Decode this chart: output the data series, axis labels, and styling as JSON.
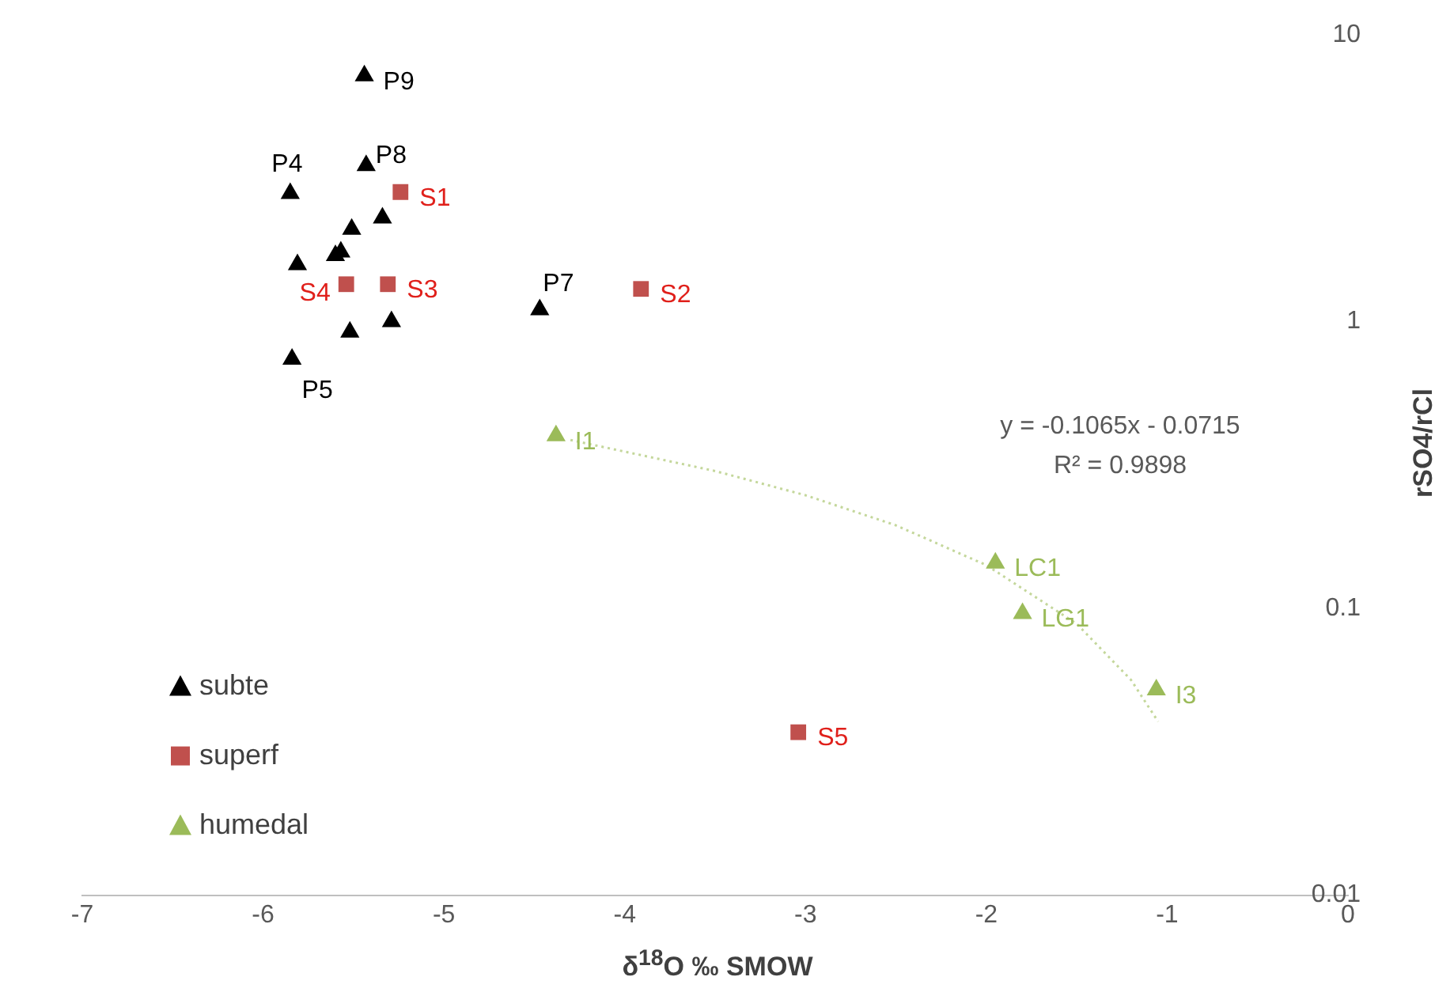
{
  "chart_data": {
    "type": "scatter",
    "xlabel": "δ$^{18}$O ‰ SMOW",
    "ylabel": "rSO4/rCl",
    "xlim": [
      -7,
      0
    ],
    "xticks": [
      -7,
      -6,
      -5,
      -4,
      -3,
      -2,
      -1,
      0
    ],
    "ylim": [
      0.01,
      10
    ],
    "yticks": [
      0.01,
      0.1,
      1,
      10
    ],
    "log": "y",
    "grid": false,
    "legend": "bottom left",
    "series": [
      {
        "name": "subte",
        "color": "#000000",
        "marker": "triangle",
        "x": [
          -5.44,
          -5.43,
          -5.85,
          -5.34,
          -5.51,
          -5.6,
          -5.57,
          -5.81,
          -5.52,
          -5.29,
          -5.84,
          -4.47
        ],
        "values": [
          7.2,
          3.5,
          2.8,
          2.3,
          2.1,
          1.7,
          1.75,
          1.58,
          0.92,
          1.0,
          0.74,
          1.1
        ],
        "value_labels": [
          "P9",
          "P8",
          "P4",
          null,
          null,
          null,
          null,
          null,
          null,
          null,
          "P5",
          "P7"
        ]
      },
      {
        "name": "superf",
        "color": "#c0504d",
        "marker": "square",
        "x": [
          -5.24,
          -5.54,
          -5.31,
          -3.91,
          -3.04
        ],
        "values": [
          2.83,
          1.35,
          1.35,
          1.3,
          0.037
        ],
        "value_labels": [
          "S1",
          "S4",
          "S3",
          "S2",
          "S5"
        ]
      },
      {
        "name": "humedal",
        "color": "#9bbb59",
        "marker": "triangle",
        "x": [
          -4.38,
          -1.95,
          -1.8,
          -1.06
        ],
        "values": [
          0.4,
          0.144,
          0.096,
          0.052
        ],
        "value_labels": [
          "I1",
          "LC1",
          "LG1",
          "I3"
        ]
      },
      {
        "type": "line",
        "color": "#c4d79b",
        "line_style": "dotted",
        "marker": "none",
        "x": [
          -4.3,
          -3.5,
          -3,
          -2.5,
          -2,
          -1.5,
          -1.2,
          -1.05
        ],
        "values": [
          0.3865,
          0.3013,
          0.248,
          0.1948,
          0.1415,
          0.0883,
          0.0563,
          0.0403
        ]
      }
    ],
    "annotations": [
      "y = -0.1065x - 0.0715",
      "R² = 0.9898"
    ]
  }
}
